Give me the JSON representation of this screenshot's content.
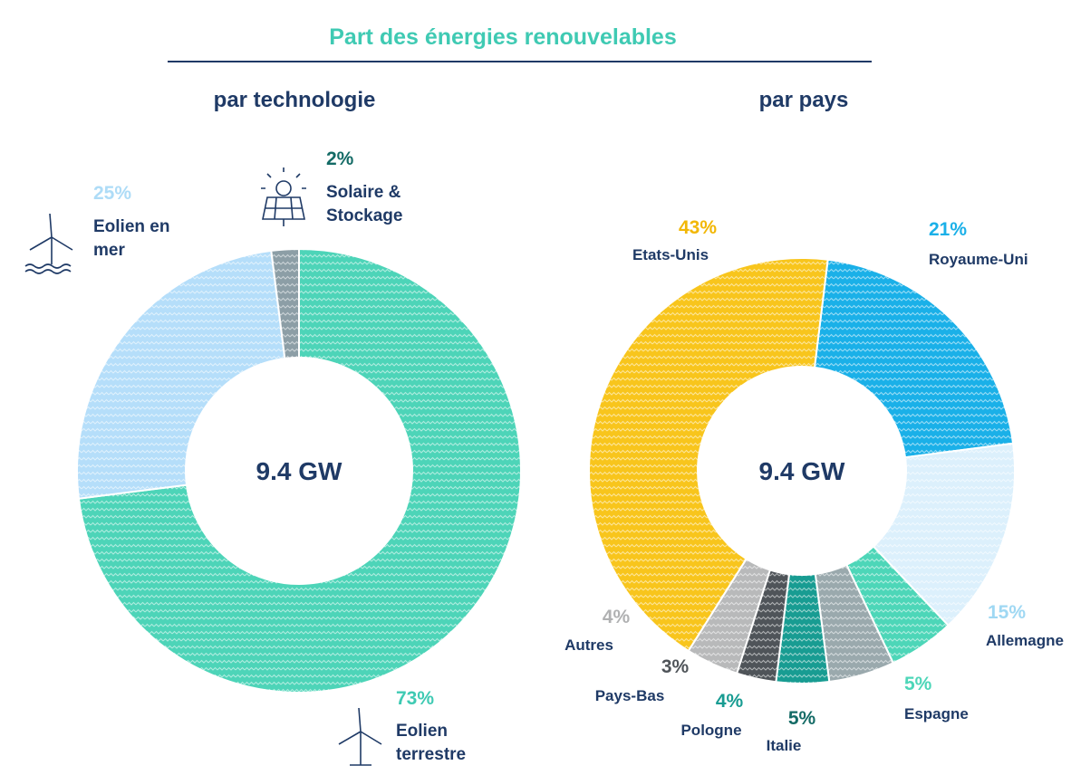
{
  "title": "Part des énergies renouvelables",
  "chart_data": [
    {
      "type": "pie",
      "donut": true,
      "title": "par technologie",
      "center_label": "9.4 GW",
      "categories": [
        "Eolien terrestre",
        "Eolien en mer",
        "Solaire & Stockage"
      ],
      "values": [
        73,
        25,
        2
      ],
      "value_labels": [
        "73%",
        "25%",
        "2%"
      ],
      "colors": [
        "#4dd4b8",
        "#b5defa",
        "#8c9ea6"
      ],
      "start_angle": 0
    },
    {
      "type": "pie",
      "donut": true,
      "title": "par pays",
      "center_label": "9.4 GW",
      "categories": [
        "Royaume-Uni",
        "Allemagne",
        "Espagne",
        "Italie",
        "Pologne",
        "Pays-Bas",
        "Autres",
        "Etats-Unis"
      ],
      "values": [
        21,
        15,
        5,
        5,
        4,
        3,
        4,
        43
      ],
      "value_labels": [
        "21%",
        "15%",
        "5%",
        "5%",
        "4%",
        "3%",
        "4%",
        "43%"
      ],
      "colors": [
        "#1ab0e8",
        "#dcf0fc",
        "#4dd6b8",
        "#9aa9ad",
        "#189c92",
        "#4f5459",
        "#b8b9ba",
        "#f8c51c"
      ],
      "start_angle": 7
    }
  ]
}
